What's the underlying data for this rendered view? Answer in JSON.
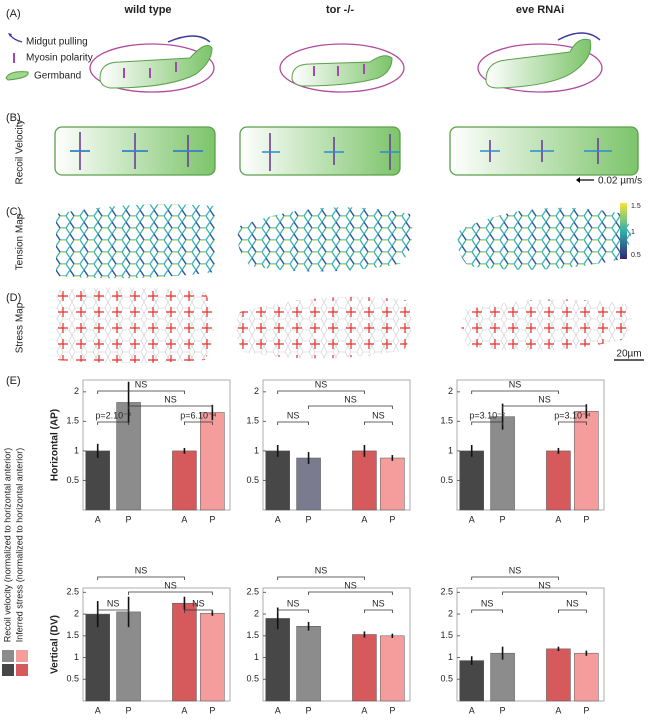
{
  "panel_labels": [
    "(A)",
    "(B)",
    "(C)",
    "(D)",
    "(E)"
  ],
  "columns": [
    "wild type",
    "tor -/-",
    "eve RNAi"
  ],
  "legend": [
    "Midgut pulling",
    "Myosin polarity",
    "Germband"
  ],
  "recoil_velocity_label": "Recoil Velocity",
  "velocity_scale": "0.02 µm/s",
  "tension_map_label": "Tension  Map",
  "colorbar_ticks": [
    1.5,
    1,
    0.5
  ],
  "stress_map_label": "Stress  Map",
  "length_scale": "20µm",
  "side_labels": [
    "Recoil velocity (normalized to horizontal anterior)",
    "Inferred stress (normalized to horizontal anterior)"
  ],
  "chart_data": [
    {
      "type": "bar",
      "ylabel": "Horizontal (AP)",
      "categories": [
        "A",
        "P",
        "A",
        "P"
      ],
      "values": [
        1,
        1.82,
        1,
        1.65
      ],
      "errors": [
        0.12,
        0.35,
        0.05,
        0.13
      ],
      "colors": [
        "#474747",
        "#8c8c8c",
        "#d65a5c",
        "#f59c9c"
      ],
      "ylim": [
        0,
        2.2
      ],
      "yticks": [
        0.5,
        1,
        1.5,
        2
      ],
      "annotations": [
        "NS",
        "NS",
        "p=2.10⁻²",
        "p=6.10⁻⁴"
      ]
    },
    {
      "type": "bar",
      "categories": [
        "A",
        "P",
        "A",
        "P"
      ],
      "values": [
        1,
        0.88,
        1,
        0.88
      ],
      "errors": [
        0.1,
        0.1,
        0.1,
        0.05
      ],
      "colors": [
        "#474747",
        "#7b7b8f",
        "#d65a5c",
        "#f59c9c"
      ],
      "ylim": [
        0,
        2.2
      ],
      "yticks": [
        0.5,
        1,
        1.5,
        2
      ],
      "annotations": [
        "NS",
        "NS",
        "NS",
        "NS"
      ]
    },
    {
      "type": "bar",
      "categories": [
        "A",
        "P",
        "A",
        "P"
      ],
      "values": [
        1,
        1.58,
        1,
        1.67
      ],
      "errors": [
        0.1,
        0.22,
        0.05,
        0.12
      ],
      "colors": [
        "#474747",
        "#8c8c8c",
        "#d65a5c",
        "#f59c9c"
      ],
      "ylim": [
        0,
        2.2
      ],
      "yticks": [
        0.5,
        1,
        1.5,
        2
      ],
      "annotations": [
        "NS",
        "NS",
        "p=3.10⁻²",
        "p=3.10⁻⁴"
      ]
    },
    {
      "type": "bar",
      "ylabel": "Vertical (DV)",
      "categories": [
        "A",
        "P",
        "A",
        "P"
      ],
      "values": [
        2,
        2.05,
        2.25,
        2.02
      ],
      "errors": [
        0.3,
        0.35,
        0.15,
        0.06
      ],
      "colors": [
        "#474747",
        "#8c8c8c",
        "#d65a5c",
        "#f59c9c"
      ],
      "ylim": [
        0,
        2.6
      ],
      "yticks": [
        0.5,
        1,
        1.5,
        2,
        2.5
      ],
      "annotations": [
        "NS",
        "NS",
        "NS",
        "NS"
      ]
    },
    {
      "type": "bar",
      "categories": [
        "A",
        "P",
        "A",
        "P"
      ],
      "values": [
        1.9,
        1.72,
        1.53,
        1.5
      ],
      "errors": [
        0.25,
        0.1,
        0.07,
        0.05
      ],
      "colors": [
        "#474747",
        "#8c8c8c",
        "#d65a5c",
        "#f59c9c"
      ],
      "ylim": [
        0,
        2.6
      ],
      "yticks": [
        0.5,
        1,
        1.5,
        2,
        2.5
      ],
      "annotations": [
        "NS",
        "NS",
        "NS",
        "NS"
      ]
    },
    {
      "type": "bar",
      "categories": [
        "A",
        "P",
        "A",
        "P"
      ],
      "values": [
        0.93,
        1.1,
        1.2,
        1.1
      ],
      "errors": [
        0.1,
        0.15,
        0.05,
        0.06
      ],
      "colors": [
        "#474747",
        "#8c8c8c",
        "#d65a5c",
        "#f59c9c"
      ],
      "ylim": [
        0,
        2.6
      ],
      "yticks": [
        0.5,
        1,
        1.5,
        2,
        2.5
      ],
      "annotations": [
        "NS",
        "NS",
        "NS",
        "NS"
      ]
    }
  ]
}
